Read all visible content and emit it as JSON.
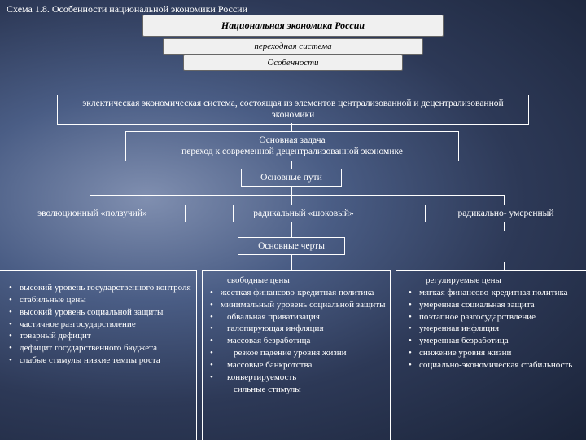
{
  "title": "Схема 1.8. Особенности национальной экономики России",
  "header": {
    "l1": "Национальная экономика России",
    "l2": "переходная система",
    "l3": "Особенности"
  },
  "box_system": "эклектическая экономическая система, состоящая из элементов централизованной и децентрализованной экономики",
  "box_task_t": "Основная задача",
  "box_task_b": "переход к современной децентрализованной экономике",
  "box_paths": "Основные пути",
  "path1": "эволюционный «ползучий»",
  "path2": "радикальный «шоковый»",
  "path3": "радикально- умеренный",
  "box_traits": "Основные черты",
  "col1": [
    {
      "t": "высокий уровень государственного контроля",
      "b": 1
    },
    {
      "t": "стабильные цены",
      "b": 1
    },
    {
      "t": "высокий уровень социальной защиты",
      "b": 1
    },
    {
      "t": "частичное разгосударствление",
      "b": 1
    },
    {
      "t": "товарный дефицит",
      "b": 1
    },
    {
      "t": "дефицит государственного бюджета",
      "b": 1
    },
    {
      "t": "слабые стимулы низкие темпы роста",
      "b": 1
    }
  ],
  "col2": [
    {
      "t": "свободные цены",
      "b": 0,
      "s": 1
    },
    {
      "t": "жесткая финансово-кредитная политика",
      "b": 1
    },
    {
      "t": "минимальный уровень социальной защиты",
      "b": 1
    },
    {
      "t": "обвальная приватизация",
      "b": 1,
      "s": 1
    },
    {
      "t": "галопирующая инфляция",
      "b": 1,
      "s": 1
    },
    {
      "t": "массовая безработица",
      "b": 1,
      "s": 1
    },
    {
      "t": "резкое падение уровня жизни",
      "b": 1,
      "s": 2
    },
    {
      "t": "массовые банкротства",
      "b": 1,
      "s": 1
    },
    {
      "t": "конвертируемость",
      "b": 1,
      "s": 1
    },
    {
      "t": "сильные стимулы",
      "b": 0,
      "s": 2
    }
  ],
  "col3": [
    {
      "t": "регулируемые цены",
      "b": 0,
      "s": 1
    },
    {
      "t": "мягкая финансово-кредитная политика",
      "b": 1
    },
    {
      "t": "умеренная социальная защита",
      "b": 1
    },
    {
      "t": "поэтапное разгосударствление",
      "b": 1
    },
    {
      "t": "умеренная инфляция",
      "b": 1
    },
    {
      "t": "умеренная безработица",
      "b": 1
    },
    {
      "t": "снижение уровня жизни",
      "b": 1
    },
    {
      "t": "социально-экономическая стабильность",
      "b": 1
    }
  ],
  "colors": {
    "border": "#ffffff",
    "text": "#ffffff"
  }
}
